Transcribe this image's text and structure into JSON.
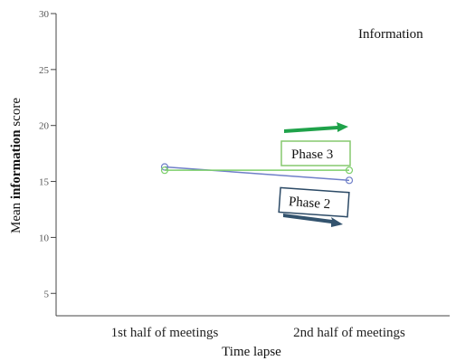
{
  "chart_data": {
    "type": "line",
    "annotation_title": "Information",
    "xlabel": "Time lapse",
    "ylabel": {
      "prefix": "Mean ",
      "bold": "information",
      "suffix": " score"
    },
    "categories": [
      "1st half of meetings",
      "2nd half of meetings"
    ],
    "ylim": [
      3,
      30
    ],
    "yticks": [
      "5",
      "10",
      "15",
      "20",
      "25",
      "30"
    ],
    "grid": false,
    "series": [
      {
        "values": [
          16.3,
          15.1
        ],
        "color": "#6f7fc8"
      },
      {
        "values": [
          16.0,
          16.0
        ],
        "color": "#7ccf6a"
      }
    ],
    "phase_labels": [
      {
        "text": "Phase 3",
        "border_color": "#86c86e",
        "arrow_color": "#1fa24a"
      },
      {
        "text": "Phase 2",
        "border_color": "#2c4a66",
        "arrow_color": "#33536e"
      }
    ]
  }
}
